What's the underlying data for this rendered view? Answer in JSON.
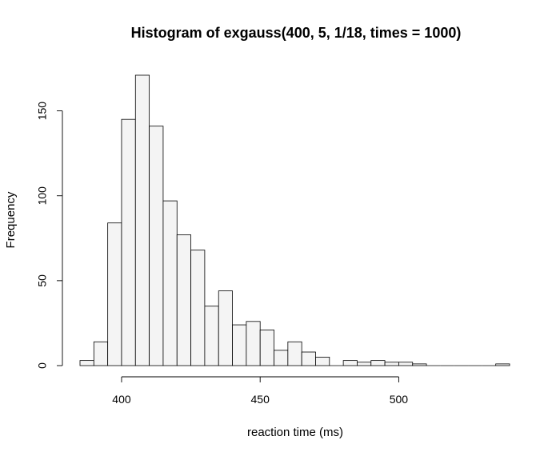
{
  "chart_data": {
    "type": "bar",
    "title": "Histogram of exgauss(400, 5, 1/18, times = 1000)",
    "xlabel": "reaction time (ms)",
    "ylabel": "Frequency",
    "bin_width": 5,
    "bins": [
      {
        "start": 385,
        "end": 390,
        "count": 3
      },
      {
        "start": 390,
        "end": 395,
        "count": 14
      },
      {
        "start": 395,
        "end": 400,
        "count": 84
      },
      {
        "start": 400,
        "end": 405,
        "count": 145
      },
      {
        "start": 405,
        "end": 410,
        "count": 171
      },
      {
        "start": 410,
        "end": 415,
        "count": 141
      },
      {
        "start": 415,
        "end": 420,
        "count": 97
      },
      {
        "start": 420,
        "end": 425,
        "count": 77
      },
      {
        "start": 425,
        "end": 430,
        "count": 68
      },
      {
        "start": 430,
        "end": 435,
        "count": 35
      },
      {
        "start": 435,
        "end": 440,
        "count": 44
      },
      {
        "start": 440,
        "end": 445,
        "count": 24
      },
      {
        "start": 445,
        "end": 450,
        "count": 26
      },
      {
        "start": 450,
        "end": 455,
        "count": 21
      },
      {
        "start": 455,
        "end": 460,
        "count": 9
      },
      {
        "start": 460,
        "end": 465,
        "count": 14
      },
      {
        "start": 465,
        "end": 470,
        "count": 8
      },
      {
        "start": 470,
        "end": 475,
        "count": 5
      },
      {
        "start": 475,
        "end": 480,
        "count": 0
      },
      {
        "start": 480,
        "end": 485,
        "count": 3
      },
      {
        "start": 485,
        "end": 490,
        "count": 2
      },
      {
        "start": 490,
        "end": 495,
        "count": 3
      },
      {
        "start": 495,
        "end": 500,
        "count": 2
      },
      {
        "start": 500,
        "end": 505,
        "count": 2
      },
      {
        "start": 505,
        "end": 510,
        "count": 1
      },
      {
        "start": 510,
        "end": 515,
        "count": 0
      },
      {
        "start": 515,
        "end": 520,
        "count": 0
      },
      {
        "start": 520,
        "end": 525,
        "count": 0
      },
      {
        "start": 525,
        "end": 530,
        "count": 0
      },
      {
        "start": 530,
        "end": 535,
        "count": 0
      },
      {
        "start": 535,
        "end": 540,
        "count": 1
      }
    ],
    "xlim": [
      385,
      540
    ],
    "ylim": [
      0,
      171
    ],
    "x_axis_range": [
      400,
      500
    ],
    "y_axis_range": [
      0,
      150
    ],
    "x_ticks": [
      400,
      450,
      500
    ],
    "y_ticks": [
      0,
      50,
      100,
      150
    ],
    "x_tick_labels": [
      "400",
      "450",
      "500"
    ],
    "y_tick_labels": [
      "0",
      "50",
      "100",
      "150"
    ],
    "grid": false,
    "legend": "none",
    "bar_fill": "#f4f4f4",
    "bar_stroke": "#000000"
  }
}
